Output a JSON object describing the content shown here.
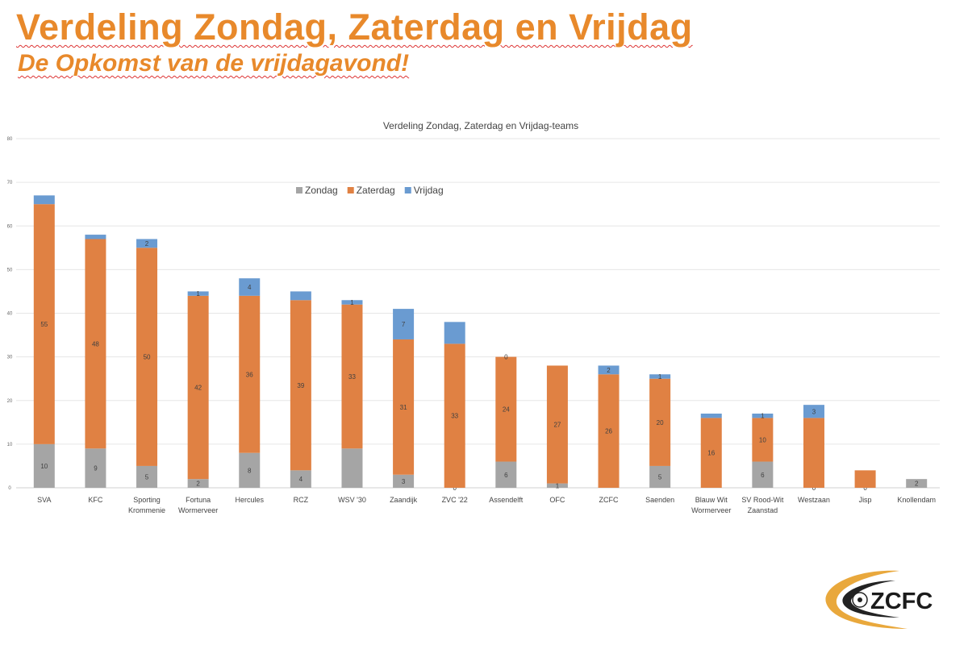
{
  "slide": {
    "title": "Verdeling Zondag, Zaterdag en Vrijdag",
    "subtitle": "De Opkomst van de vrijdagavond!",
    "logo_text": "ZCFC"
  },
  "colors": {
    "accent": "#e8892b",
    "zondag": "#a5a5a5",
    "zaterdag": "#e08143",
    "vrijdag": "#6a9bd1"
  },
  "chart_data": {
    "type": "bar",
    "stacked": true,
    "title": "Verdeling Zondag, Zaterdag en Vrijdag-teams",
    "xlabel": "",
    "ylabel": "",
    "ylim": [
      0,
      80
    ],
    "yticks": [
      "0",
      "10",
      "20",
      "30",
      "40",
      "50",
      "60",
      "70",
      "80"
    ],
    "grid": true,
    "legend_position": "top-center",
    "categories": [
      [
        "SVA"
      ],
      [
        "KFC"
      ],
      [
        "Sporting",
        "Krommenie"
      ],
      [
        "Fortuna",
        "Wormerveer"
      ],
      [
        "Hercules"
      ],
      [
        "RCZ"
      ],
      [
        "WSV '30"
      ],
      [
        "Zaandijk"
      ],
      [
        "ZVC '22"
      ],
      [
        "Assendelft"
      ],
      [
        "OFC"
      ],
      [
        "ZCFC"
      ],
      [
        "Saenden"
      ],
      [
        "Blauw Wit",
        "Wormerveer"
      ],
      [
        "SV Rood-Wit",
        "Zaanstad"
      ],
      [
        "Westzaan"
      ],
      [
        "Jisp"
      ],
      [
        "Knollendam"
      ]
    ],
    "series": [
      {
        "name": "Zondag",
        "color": "#a5a5a5",
        "values": [
          10,
          9,
          5,
          2,
          8,
          4,
          9,
          3,
          0,
          6,
          1,
          0,
          5,
          0,
          6,
          0,
          0,
          2
        ],
        "labels": [
          "10",
          "9",
          "5",
          "2",
          "8",
          "4",
          "",
          "3",
          "0",
          "6",
          "1",
          "",
          "5",
          "",
          "6",
          "0",
          "0",
          "2"
        ]
      },
      {
        "name": "Zaterdag",
        "color": "#e08143",
        "values": [
          55,
          48,
          50,
          42,
          36,
          39,
          33,
          31,
          33,
          24,
          27,
          26,
          20,
          16,
          10,
          16,
          4,
          0
        ],
        "labels": [
          "55",
          "48",
          "50",
          "42",
          "36",
          "39",
          "33",
          "31",
          "33",
          "24",
          "27",
          "26",
          "20",
          "16",
          "10",
          "",
          "",
          ""
        ]
      },
      {
        "name": "Vrijdag",
        "color": "#6a9bd1",
        "values": [
          2,
          1,
          2,
          1,
          4,
          2,
          1,
          7,
          5,
          0,
          0,
          2,
          1,
          1,
          1,
          3,
          0,
          0
        ],
        "labels": [
          "",
          "",
          "2",
          "1",
          "4",
          "",
          "1",
          "7",
          "",
          "0",
          "",
          "2",
          "1",
          "",
          "1",
          "3",
          "",
          ""
        ]
      }
    ]
  }
}
